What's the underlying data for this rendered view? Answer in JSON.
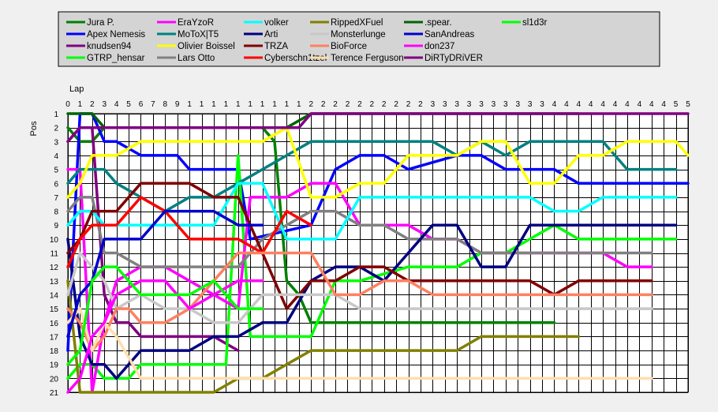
{
  "chart_data": {
    "type": "line",
    "xlabel": "Lap",
    "ylabel": "Pos",
    "xlim": [
      0,
      51
    ],
    "ylim": [
      1,
      21
    ],
    "y_inverted": true,
    "grid": true,
    "legend_position": "top",
    "x_tick_labels": [
      "0",
      "1",
      "2",
      "3",
      "4",
      "5",
      "6",
      "7",
      "8",
      "9",
      "1",
      "1",
      "1",
      "1",
      "1",
      "1",
      "1",
      "1",
      "1",
      "1",
      "2",
      "2",
      "2",
      "2",
      "2",
      "2",
      "2",
      "2",
      "2",
      "2",
      "3",
      "3",
      "3",
      "3",
      "3",
      "3",
      "3",
      "3",
      "3",
      "3",
      "4",
      "4",
      "4",
      "4",
      "4",
      "4",
      "4",
      "4",
      "4",
      "4",
      "5",
      "5"
    ],
    "y_tick_labels": [
      "1",
      "2",
      "3",
      "4",
      "5",
      "6",
      "7",
      "8",
      "9",
      "10",
      "11",
      "12",
      "13",
      "14",
      "15",
      "16",
      "17",
      "18",
      "19",
      "20",
      "21"
    ],
    "series": [
      {
        "name": "Jura P.",
        "color": "#008000",
        "x": [
          0,
          1,
          2,
          3,
          4,
          16,
          17,
          18,
          19,
          20,
          40
        ],
        "y": [
          2,
          3,
          3,
          2,
          2,
          2,
          3,
          13,
          14,
          16,
          16
        ]
      },
      {
        "name": "Apex Nemesis",
        "color": "#0000ff",
        "x": [
          0,
          1,
          2,
          3,
          4,
          6,
          9,
          10,
          14,
          15,
          20,
          22,
          24,
          26,
          28,
          32,
          34,
          36,
          40,
          42,
          50,
          51
        ],
        "y": [
          18,
          1,
          1,
          3,
          3,
          4,
          4,
          5,
          5,
          10,
          9,
          5,
          4,
          4,
          5,
          4,
          4,
          5,
          5,
          6,
          6,
          6
        ]
      },
      {
        "name": "knudsen94",
        "color": "#800080",
        "x": [
          0,
          1,
          2,
          3,
          4,
          5,
          6,
          8,
          10,
          12,
          14
        ],
        "y": [
          3,
          2,
          2,
          14,
          16,
          16,
          17,
          17,
          17,
          17,
          18
        ]
      },
      {
        "name": "GTRP_hensar",
        "color": "#00ff00",
        "x": [
          0,
          1,
          2,
          3,
          4,
          5,
          6,
          8,
          10,
          12,
          13,
          14,
          15,
          16,
          18,
          20,
          22,
          24,
          28,
          30,
          32,
          34,
          36,
          38,
          40,
          42,
          44,
          46,
          48,
          50
        ],
        "y": [
          20,
          19,
          19,
          20,
          20,
          20,
          19,
          19,
          19,
          19,
          19,
          4,
          17,
          17,
          17,
          17,
          13,
          13,
          12,
          12,
          12,
          11,
          11,
          10,
          9,
          10,
          10,
          10,
          10,
          10
        ]
      },
      {
        "name": "EraYzoR",
        "color": "#ff00ff",
        "x": [
          0,
          1,
          2,
          3,
          4,
          6,
          8,
          10,
          12,
          14,
          15,
          16,
          17,
          18,
          20,
          22,
          24,
          26,
          28,
          30,
          32,
          34,
          36,
          38,
          40,
          42,
          44,
          46,
          48
        ],
        "y": [
          5,
          5,
          21,
          16,
          13,
          12,
          12,
          13,
          14,
          15,
          7,
          7,
          7,
          7,
          6,
          6,
          9,
          9,
          9,
          10,
          10,
          11,
          11,
          11,
          11,
          11,
          11,
          12,
          12
        ]
      },
      {
        "name": "MoToX|T5",
        "color": "#008080",
        "x": [
          0,
          1,
          2,
          3,
          4,
          6,
          8,
          10,
          12,
          14,
          16,
          18,
          20,
          22,
          24,
          26,
          28,
          30,
          32,
          34,
          36,
          38,
          40,
          42,
          44,
          46,
          50
        ],
        "y": [
          6,
          5,
          5,
          5,
          6,
          7,
          8,
          7,
          7,
          6,
          5,
          4,
          3,
          3,
          3,
          3,
          3,
          3,
          4,
          3,
          4,
          3,
          3,
          3,
          3,
          5,
          5
        ]
      },
      {
        "name": "Olivier Boissel",
        "color": "#ffff00",
        "x": [
          0,
          1,
          2,
          3,
          4,
          6,
          8,
          10,
          12,
          14,
          16,
          18,
          20,
          22,
          24,
          26,
          28,
          30,
          32,
          34,
          36,
          38,
          40,
          42,
          44,
          46,
          48,
          50,
          51
        ],
        "y": [
          7,
          6,
          4,
          4,
          4,
          3,
          3,
          3,
          3,
          3,
          3,
          2,
          7,
          7,
          6,
          6,
          4,
          4,
          4,
          3,
          3,
          6,
          6,
          4,
          4,
          3,
          3,
          3,
          4
        ]
      },
      {
        "name": "Lars Otto",
        "color": "#808080",
        "x": [
          0,
          1,
          2,
          3,
          4,
          6,
          8,
          10,
          12,
          14,
          16,
          18,
          20,
          22,
          24,
          26,
          28,
          30,
          32,
          34,
          36,
          38,
          40,
          42,
          44,
          46,
          48
        ],
        "y": [
          8,
          7,
          7,
          11,
          11,
          12,
          12,
          12,
          12,
          12,
          10,
          9,
          8,
          8,
          9,
          9,
          10,
          10,
          10,
          11,
          11,
          11,
          11,
          11,
          11,
          11,
          11
        ]
      },
      {
        "name": "volker",
        "color": "#00ffff",
        "x": [
          0,
          1,
          2,
          3,
          4,
          6,
          8,
          10,
          12,
          14,
          16,
          18,
          20,
          22,
          24,
          26,
          28,
          30,
          32,
          34,
          36,
          38,
          40,
          42,
          44,
          46,
          48,
          50
        ],
        "y": [
          9,
          8,
          8,
          9,
          9,
          9,
          9,
          9,
          9,
          6,
          6,
          10,
          10,
          10,
          7,
          7,
          7,
          7,
          7,
          7,
          7,
          7,
          8,
          8,
          7,
          7,
          7,
          7
        ]
      },
      {
        "name": "Arti",
        "color": "#000080",
        "x": [
          0,
          1,
          2,
          3,
          4,
          6,
          8,
          10,
          12,
          14,
          16,
          18,
          20,
          22,
          24,
          26,
          28,
          30,
          32,
          34,
          36,
          38,
          40,
          42,
          44,
          46,
          48,
          50
        ],
        "y": [
          10,
          17,
          19,
          19,
          20,
          18,
          18,
          18,
          17,
          17,
          16,
          16,
          13,
          12,
          12,
          13,
          11,
          9,
          9,
          12,
          12,
          9,
          9,
          9,
          9,
          9,
          9,
          9
        ]
      },
      {
        "name": "TRZA",
        "color": "#800000",
        "x": [
          0,
          1,
          2,
          3,
          4,
          6,
          8,
          10,
          12,
          14,
          16,
          18,
          20,
          22,
          24,
          26,
          28,
          30,
          32,
          34,
          36,
          38,
          40,
          42,
          44,
          46,
          48
        ],
        "y": [
          11,
          10,
          8,
          8,
          8,
          6,
          6,
          6,
          7,
          7,
          11,
          15,
          13,
          13,
          12,
          12,
          13,
          13,
          13,
          13,
          13,
          13,
          14,
          13,
          13,
          13,
          13
        ]
      },
      {
        "name": "Cyberschn1tzel",
        "color": "#ff0000",
        "x": [
          0,
          1,
          2,
          3,
          4,
          6,
          8,
          10,
          12,
          14,
          16,
          18,
          20
        ],
        "y": [
          12,
          10,
          9,
          9,
          9,
          7,
          8,
          10,
          10,
          10,
          11,
          8,
          9
        ]
      },
      {
        "name": "RippedXFuel",
        "color": "#808000",
        "x": [
          0,
          1,
          2,
          4,
          6,
          8,
          10,
          12,
          14,
          16,
          18,
          20,
          22,
          24,
          26,
          28,
          30,
          32,
          34,
          36,
          38,
          40,
          42
        ],
        "y": [
          13,
          21,
          21,
          21,
          21,
          21,
          21,
          21,
          20,
          20,
          19,
          18,
          18,
          18,
          18,
          18,
          18,
          18,
          17,
          17,
          17,
          17,
          17
        ]
      },
      {
        "name": "Monsterlunge",
        "color": "#c8c8c8",
        "x": [
          0,
          1,
          2,
          3,
          4,
          6,
          8,
          10,
          12,
          14,
          16,
          18,
          20,
          22,
          24,
          26,
          28,
          30,
          32,
          34,
          36,
          38,
          40,
          42,
          44,
          46,
          48
        ],
        "y": [
          14,
          11,
          12,
          13,
          15,
          14,
          15,
          15,
          16,
          16,
          14,
          14,
          14,
          14,
          15,
          15,
          15,
          15,
          15,
          15,
          15,
          15,
          15,
          15,
          15,
          15,
          15
        ]
      },
      {
        "name": "BioForce",
        "color": "#ff8060",
        "x": [
          0,
          1,
          2,
          3,
          4,
          5,
          6,
          8,
          10,
          12,
          14,
          16,
          18,
          20,
          22,
          24,
          26,
          28,
          30,
          32,
          34,
          36,
          38,
          40,
          42,
          44,
          46,
          48
        ],
        "y": [
          15,
          16,
          18,
          17,
          15,
          15,
          16,
          16,
          15,
          13,
          11,
          11,
          11,
          11,
          14,
          14,
          13,
          13,
          14,
          14,
          14,
          14,
          14,
          14,
          14,
          14,
          14,
          14
        ]
      },
      {
        "name": "Terence Ferguson",
        "color": "#ffdead",
        "x": [
          0,
          1,
          2,
          3,
          4,
          6,
          8,
          10,
          12,
          14,
          16,
          18,
          20,
          22,
          24,
          26,
          28,
          30,
          32,
          34,
          36,
          38,
          40,
          42,
          44,
          46,
          48
        ],
        "y": [
          16,
          15,
          18,
          16,
          17,
          20,
          20,
          20,
          20,
          20,
          20,
          20,
          20,
          20,
          20,
          20,
          20,
          20,
          20,
          20,
          20,
          20,
          20,
          20,
          20,
          20,
          20
        ]
      },
      {
        "name": ".spear.",
        "color": "#006400",
        "x": [
          0,
          1,
          2,
          3,
          4,
          6,
          8,
          10,
          12,
          14,
          16,
          18,
          20,
          22,
          24,
          26,
          28,
          30,
          32,
          34,
          36,
          38,
          40,
          42
        ],
        "y": [
          1,
          1,
          1,
          2,
          2,
          2,
          2,
          2,
          2,
          2,
          2,
          2,
          1,
          1,
          1,
          1,
          1,
          1,
          1,
          1,
          1,
          1,
          1,
          1
        ]
      },
      {
        "name": "SanAndreas",
        "color": "#0000cd",
        "x": [
          0,
          1,
          2,
          3,
          4,
          6,
          8,
          10,
          12,
          14,
          16
        ],
        "y": [
          17,
          14,
          13,
          10,
          10,
          10,
          8,
          8,
          8,
          9,
          9
        ]
      },
      {
        "name": "don237",
        "color": "#ff00ff",
        "x": [
          0,
          1,
          2,
          3,
          4,
          6,
          8,
          10,
          12,
          14,
          16
        ],
        "y": [
          21,
          20,
          17,
          16,
          14,
          13,
          13,
          15,
          14,
          13,
          13
        ]
      },
      {
        "name": "DiRTyDRiVER",
        "color": "#800080",
        "x": [
          0,
          1,
          2,
          3,
          4,
          16,
          17,
          18,
          19,
          20,
          51
        ],
        "y": [
          3,
          2,
          2,
          2,
          2,
          2,
          2,
          2,
          2,
          1,
          1
        ]
      },
      {
        "name": "sl1d3r",
        "color": "#00ff00",
        "x": [
          0,
          1,
          2,
          3,
          4,
          6,
          8,
          10,
          12,
          14,
          16
        ],
        "y": [
          19,
          18,
          13,
          12,
          12,
          14,
          14,
          14,
          13,
          15,
          15
        ]
      }
    ]
  }
}
